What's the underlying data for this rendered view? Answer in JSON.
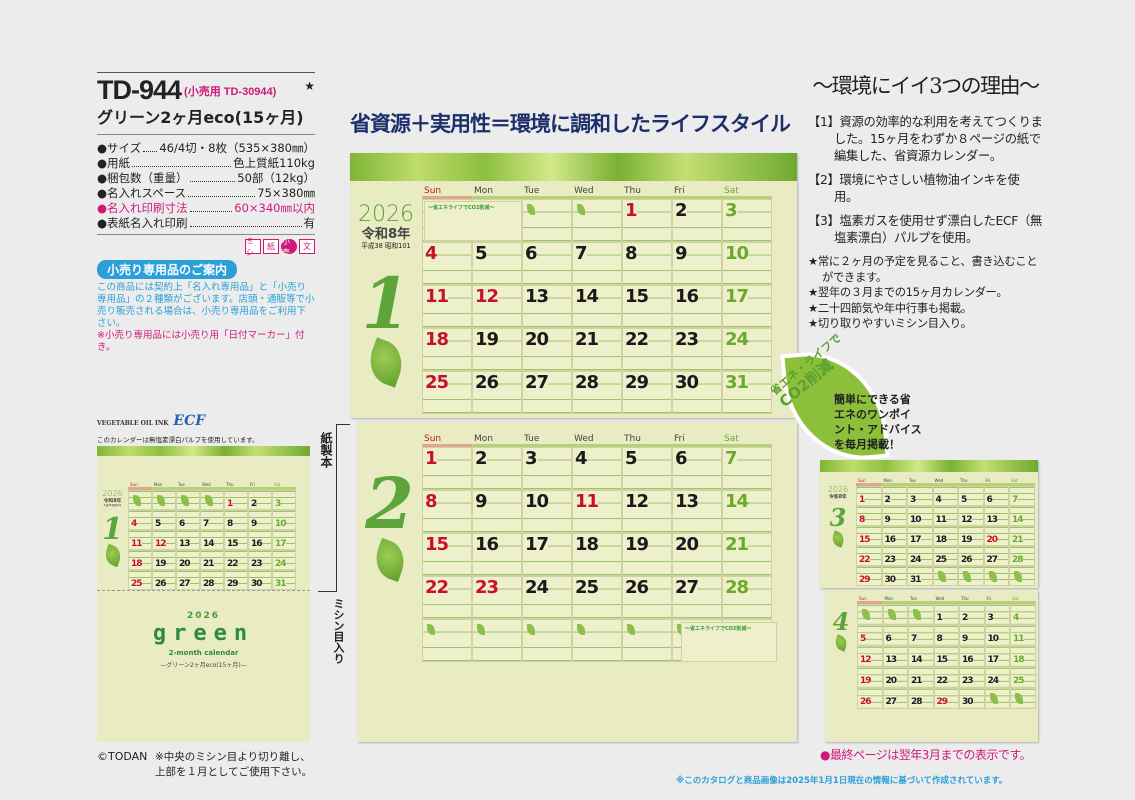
{
  "product": {
    "model": "TD-944",
    "retail_model": "(小売用 TD-30944)",
    "star": "★",
    "name": "グリーン2ヶ月eco(15ヶ月)",
    "specs": [
      {
        "label": "サイズ",
        "value": "46/4切・8枚（535×380㎜）",
        "highlight": false
      },
      {
        "label": "用紙",
        "value": "色上質紙110kg",
        "highlight": false
      },
      {
        "label": "梱包数（重量）",
        "value": "50部（12kg）",
        "highlight": false
      },
      {
        "label": "名入れスペース",
        "value": "75×380㎜",
        "highlight": false
      },
      {
        "label": "名入れ印刷寸法",
        "value": "60×340㎜以内",
        "highlight": true
      },
      {
        "label": "表紙名入れ印刷",
        "value": "有",
        "highlight": false
      }
    ],
    "icons": [
      "ミシ",
      "紙",
      "小売",
      "文"
    ],
    "retail_badge": "小売り専用品のご案内",
    "retail_note": "この商品には契約上「名入れ専用品」と「小売り専用品」の２種類がございます。店頭・通販等で小売り販売される場合は、小売り専用品をご利用下さい。",
    "retail_note2": "※小売り専用品には小売り用「日付マーカー」付き。"
  },
  "headline": "省資源＋実用性＝環境に調和したライフスタイル",
  "reasons": {
    "title": "〜環境にイイ3つの理由〜",
    "items": [
      "【1】資源の効率的な利用を考えてつくりました。15ヶ月をわずか８ページの紙で編集した、省資源カレンダー。",
      "【2】環境にやさしい植物油インキを使用。",
      "【3】塩素ガスを使用せず漂白したECF（無塩素漂白）パルプを使用。"
    ],
    "features": [
      "常に２ヶ月の予定を見ること、書き込むことができます。",
      "翌年の３月までの15ヶ月カレンダー。",
      "二十四節気や年中行事も掲載。",
      "切り取りやすいミシン目入り。"
    ]
  },
  "callout": {
    "head_small": "省エネ・ライフで",
    "head_big": "CO2削減",
    "text": "簡単にできる省\nエネのワンポイ\nント・アドバイス\nを毎月掲載！"
  },
  "weekdays": [
    "Sun",
    "Mon",
    "Tue",
    "Wed",
    "Thu",
    "Fri",
    "Sat"
  ],
  "colors": {
    "holiday": "#c8102e",
    "saturday": "#6aaa2a",
    "weekday": "#1a1a1a",
    "headline": "#1d2f6b",
    "accent": "#d0187a",
    "info": "#2a9fd8"
  },
  "months": {
    "jan": {
      "month": "1",
      "year": "2026",
      "era": "令和8年",
      "era_sub": "平成38 昭和101",
      "weeks": [
        [
          null,
          null,
          null,
          null,
          1,
          2,
          3
        ],
        [
          4,
          5,
          6,
          7,
          8,
          9,
          10
        ],
        [
          11,
          12,
          13,
          14,
          15,
          16,
          17
        ],
        [
          18,
          19,
          20,
          21,
          22,
          23,
          24
        ],
        [
          25,
          26,
          27,
          28,
          29,
          30,
          31
        ]
      ],
      "holidays": [
        1,
        12
      ]
    },
    "feb": {
      "month": "2",
      "weeks": [
        [
          1,
          2,
          3,
          4,
          5,
          6,
          7
        ],
        [
          8,
          9,
          10,
          11,
          12,
          13,
          14
        ],
        [
          15,
          16,
          17,
          18,
          19,
          20,
          21
        ],
        [
          22,
          23,
          24,
          25,
          26,
          27,
          28
        ],
        [
          null,
          null,
          null,
          null,
          null,
          null,
          null
        ]
      ],
      "holidays": [
        11,
        23
      ]
    },
    "mar": {
      "month": "3",
      "year": "2026",
      "era": "令和8年",
      "weeks": [
        [
          1,
          2,
          3,
          4,
          5,
          6,
          7
        ],
        [
          8,
          9,
          10,
          11,
          12,
          13,
          14
        ],
        [
          15,
          16,
          17,
          18,
          19,
          20,
          21
        ],
        [
          22,
          23,
          24,
          25,
          26,
          27,
          28
        ],
        [
          29,
          30,
          31,
          null,
          null,
          null,
          null
        ]
      ],
      "holidays": [
        20
      ]
    },
    "apr": {
      "month": "4",
      "weeks": [
        [
          null,
          null,
          null,
          1,
          2,
          3,
          4
        ],
        [
          5,
          6,
          7,
          8,
          9,
          10,
          11
        ],
        [
          12,
          13,
          14,
          15,
          16,
          17,
          18
        ],
        [
          19,
          20,
          21,
          22,
          23,
          24,
          25
        ],
        [
          26,
          27,
          28,
          29,
          30,
          null,
          null
        ]
      ],
      "holidays": [
        29
      ]
    }
  },
  "note_box": {
    "title": "〜省エネライフでCO2削減〜"
  },
  "ecf": {
    "logo_text": "ECF",
    "veg_text": "VEGETABLE OIL INK",
    "note": "このカレンダーは無塩素漂白パルプを使用しています。"
  },
  "binding": {
    "paper": "紙製本",
    "perforation": "ミシン目入り"
  },
  "cover": {
    "year": "2026",
    "word": "green",
    "subtitle": "2-month calendar",
    "product": "—グリーン2ヶ月eco(15ヶ月)—"
  },
  "footer": {
    "copyright": "©TODAN",
    "usage": "※中央のミシン目より切り離し、上部を１月としてご使用下さい。",
    "last_page": "●最終ページは翌年3月までの表示です。",
    "catalog_note": "※このカタログと商品画像は2025年1月1日現在の情報に基づいて作成されています。"
  }
}
